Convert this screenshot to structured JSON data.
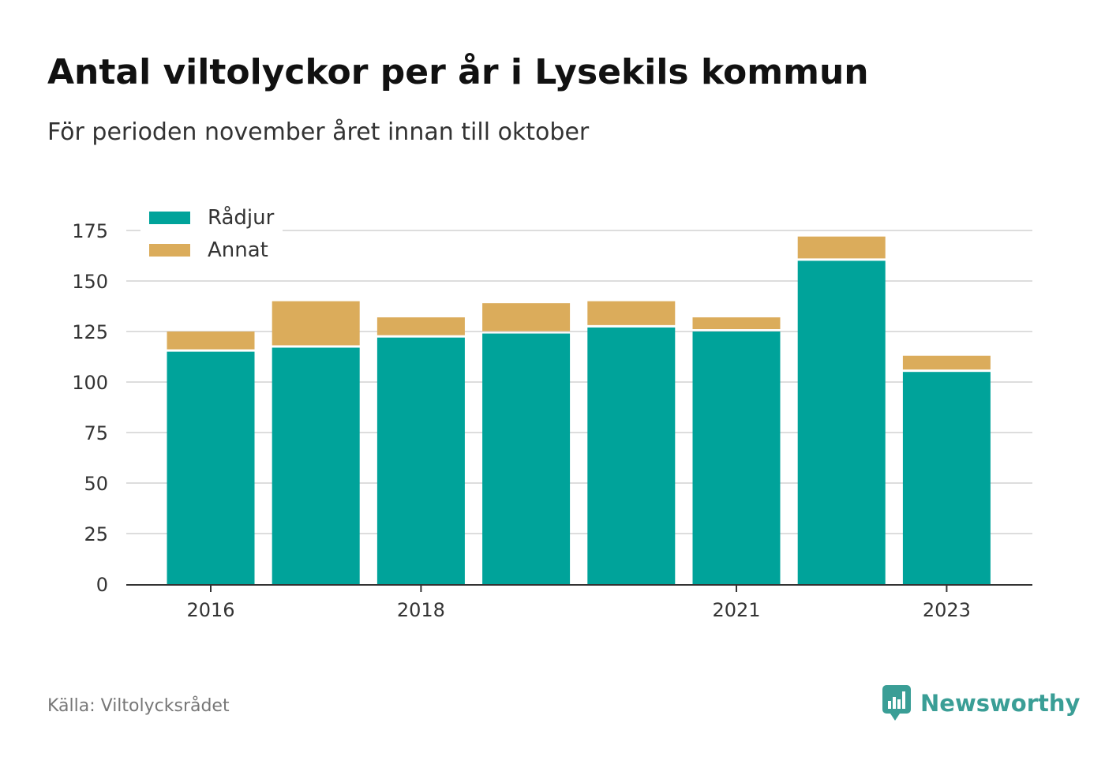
{
  "title": "Antal viltolyckor per år i Lysekils kommun",
  "subtitle": "För perioden november året innan till oktober",
  "source": "Källa: Viltolycksrådet",
  "brand": {
    "name": "Newsworthy",
    "icon": "newsworthy-logo-icon"
  },
  "colors": {
    "radjur": "#00a39a",
    "annat": "#dbac5b",
    "grid": "#dddddd",
    "axis": "#333333",
    "text": "#333333"
  },
  "chart_data": {
    "type": "bar",
    "stacked": true,
    "categories": [
      "2016",
      "2017",
      "2018",
      "2019",
      "2020",
      "2021",
      "2022",
      "2023"
    ],
    "x_tick_labels": [
      "2016",
      "2018",
      "2021",
      "2023"
    ],
    "series": [
      {
        "name": "Rådjur",
        "values": [
          115,
          117,
          122,
          124,
          127,
          125,
          160,
          105
        ]
      },
      {
        "name": "Annat",
        "values": [
          10,
          23,
          10,
          15,
          13,
          7,
          12,
          8
        ]
      }
    ],
    "y_ticks": [
      0,
      25,
      50,
      75,
      100,
      125,
      150,
      175
    ],
    "ylim": [
      0,
      175
    ],
    "xlabel": "",
    "ylabel": "",
    "grid": true,
    "legend": "top-left"
  }
}
